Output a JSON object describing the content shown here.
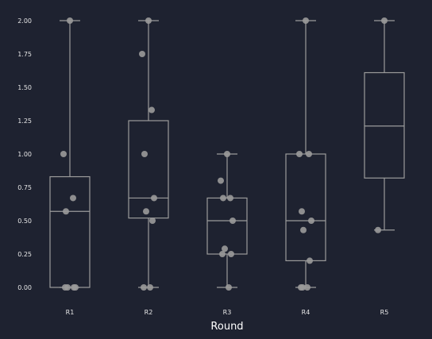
{
  "chart_data": {
    "type": "box",
    "xlabel": "Round",
    "ylabel": "",
    "ylim": [
      0,
      2
    ],
    "yticks": [
      "0.00",
      "0.25",
      "0.50",
      "0.75",
      "1.00",
      "1.25",
      "1.50",
      "1.75",
      "2.00"
    ],
    "grid": false,
    "categories": [
      "R1",
      "R2",
      "R3",
      "R4",
      "R5"
    ],
    "boxes": [
      {
        "name": "R1",
        "whisker_low": 0,
        "q1": 0,
        "median": 0.57,
        "q3": 0.83,
        "whisker_high": 2.0
      },
      {
        "name": "R2",
        "whisker_low": 0,
        "q1": 0.52,
        "median": 0.67,
        "q3": 1.25,
        "whisker_high": 2.0
      },
      {
        "name": "R3",
        "whisker_low": 0,
        "q1": 0.25,
        "median": 0.5,
        "q3": 0.67,
        "whisker_high": 1.0
      },
      {
        "name": "R4",
        "whisker_low": 0,
        "q1": 0.2,
        "median": 0.5,
        "q3": 1.0,
        "whisker_high": 2.0
      },
      {
        "name": "R5",
        "whisker_low": 0.43,
        "q1": 0.82,
        "median": 1.21,
        "q3": 1.61,
        "whisker_high": 2.0
      }
    ],
    "points": [
      {
        "category": "R1",
        "values": [
          2.0,
          1.0,
          0.67,
          0.57,
          0,
          0,
          0,
          0
        ]
      },
      {
        "category": "R2",
        "values": [
          2.0,
          1.75,
          1.33,
          1.0,
          0.67,
          0.57,
          0.5,
          0,
          0
        ]
      },
      {
        "category": "R3",
        "values": [
          1.0,
          0.8,
          0.67,
          0.67,
          0.5,
          0.29,
          0.25,
          0.25,
          0
        ]
      },
      {
        "category": "R4",
        "values": [
          2.0,
          1.0,
          1.0,
          0.57,
          0.5,
          0.43,
          0.2,
          0,
          0,
          0
        ]
      },
      {
        "category": "R5",
        "values": [
          2.0,
          0.43
        ]
      }
    ],
    "colors": {
      "background": "#1e2230",
      "box": "#9b9b9b",
      "point": "#9a9a9a",
      "text": "#e6e6e6"
    }
  }
}
